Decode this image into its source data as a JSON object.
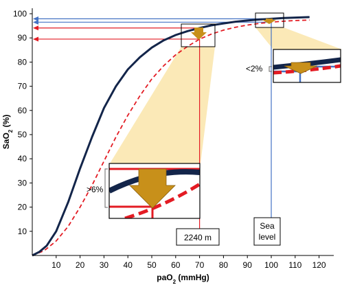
{
  "chart_data": {
    "type": "line",
    "xlabel": "paO",
    "xlabel_sub": "2",
    "xlabel_unit": " (mmHg)",
    "ylabel": "SaO",
    "ylabel_sub": "2",
    "ylabel_unit": " (%)",
    "xlim": [
      0,
      125
    ],
    "ylim": [
      0,
      100
    ],
    "x_ticks": [
      10,
      20,
      30,
      40,
      50,
      60,
      70,
      80,
      90,
      100,
      110,
      120
    ],
    "y_ticks": [
      10,
      20,
      30,
      40,
      50,
      60,
      70,
      80,
      90,
      100
    ],
    "series": [
      {
        "style": "solid",
        "color": "#13254a",
        "x": [
          0,
          3,
          6,
          10,
          15,
          20,
          25,
          30,
          35,
          40,
          45,
          50,
          55,
          60,
          65,
          70,
          75,
          80,
          85,
          90,
          95,
          100,
          105,
          110,
          116
        ],
        "y": [
          0,
          1.5,
          4,
          10,
          22,
          36,
          49,
          61,
          70,
          77,
          82,
          86,
          89,
          91.2,
          92.8,
          94.1,
          95.2,
          96,
          96.7,
          97.2,
          97.6,
          97.9,
          98.2,
          98.4,
          98.6
        ]
      },
      {
        "style": "dashed",
        "color": "#e31b23",
        "x": [
          0,
          5,
          10,
          15,
          20,
          25,
          30,
          35,
          40,
          45,
          50,
          55,
          60,
          65,
          70,
          75,
          80,
          85,
          90,
          95,
          100,
          105,
          110,
          116
        ],
        "y": [
          0,
          2,
          6,
          12,
          20,
          29,
          39,
          49,
          58,
          66,
          73,
          78.5,
          83,
          86.5,
          89.5,
          91.6,
          93.2,
          94.4,
          95.3,
          96,
          96.5,
          96.9,
          97.2,
          97.4
        ]
      }
    ],
    "annotations": {
      "altitude_label": "2240 m",
      "sea_level_label": "Sea\nlevel",
      "drop_label_low": ">6%",
      "drop_label_high": "<2%"
    }
  },
  "colors": {
    "navy": "#13254a",
    "red": "#e31b23",
    "blue": "#4472c4",
    "highlight": "#fbe9b7",
    "arrow": "#c8901a"
  }
}
